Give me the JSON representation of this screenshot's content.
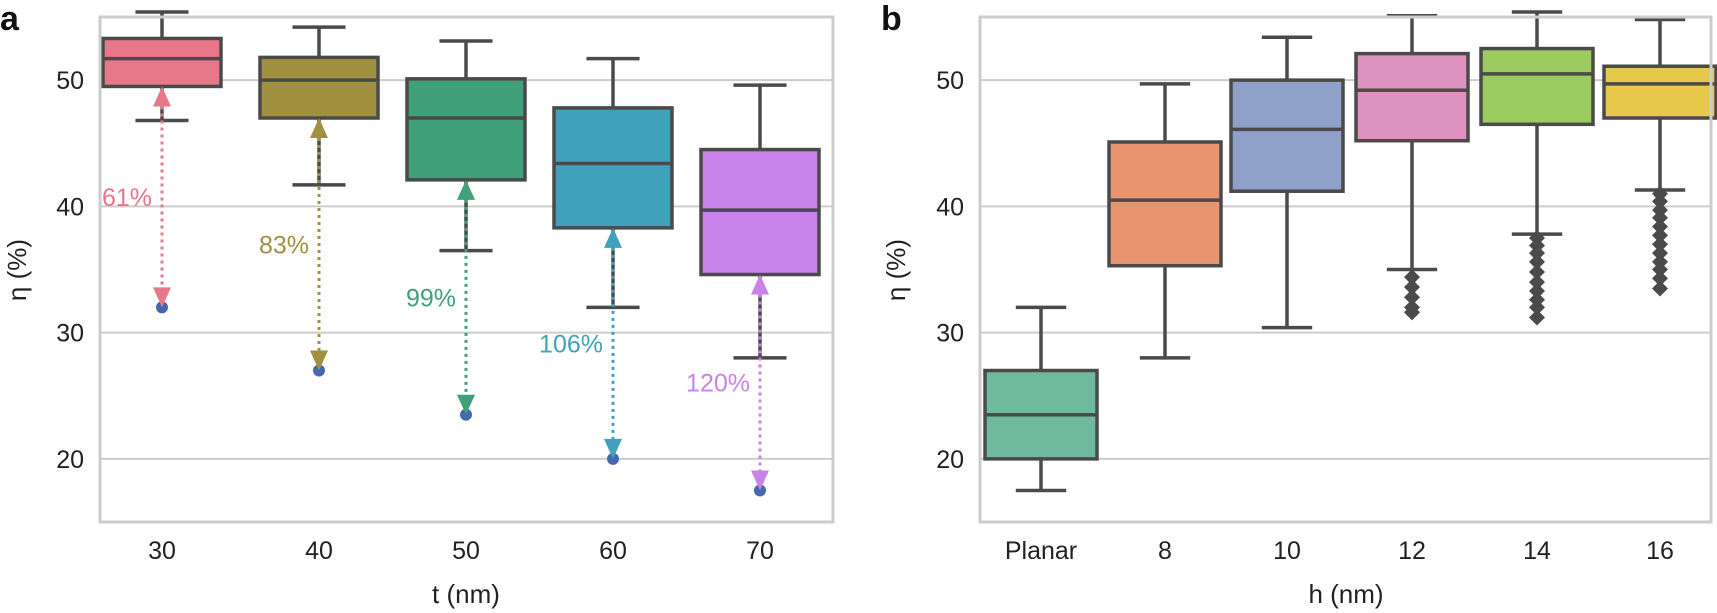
{
  "figure": {
    "panels": [
      {
        "id": "a",
        "label": "a"
      },
      {
        "id": "b",
        "label": "b"
      }
    ]
  },
  "chart_data": [
    {
      "panel": "a",
      "type": "box",
      "xlabel": "t (nm)",
      "ylabel": "η (%)",
      "ylim": [
        15,
        55
      ],
      "yticks": [
        20,
        30,
        40,
        50
      ],
      "grid": true,
      "categories": [
        "30",
        "40",
        "50",
        "60",
        "70"
      ],
      "colors": [
        "#e8778a",
        "#a09040",
        "#3fa07a",
        "#3fa2ba",
        "#c982e9"
      ],
      "boxes": [
        {
          "whislo": 46.8,
          "q1": 49.5,
          "med": 51.7,
          "q3": 53.3,
          "whishi": 55.4,
          "fliers": []
        },
        {
          "whislo": 41.7,
          "q1": 47.0,
          "med": 50.0,
          "q3": 51.8,
          "whishi": 54.2,
          "fliers": []
        },
        {
          "whislo": 36.5,
          "q1": 42.1,
          "med": 47.0,
          "q3": 50.1,
          "whishi": 53.1,
          "fliers": []
        },
        {
          "whislo": 32.0,
          "q1": 38.3,
          "med": 43.4,
          "q3": 47.8,
          "whishi": 51.7,
          "fliers": []
        },
        {
          "whislo": 28.0,
          "q1": 34.6,
          "med": 39.7,
          "q3": 44.5,
          "whishi": 49.6,
          "fliers": []
        }
      ],
      "reference_points": {
        "color": "#4468b0",
        "values": [
          32.0,
          27.0,
          23.5,
          20.0,
          17.5
        ]
      },
      "arrows": [
        {
          "from": 49.5,
          "to": 32.0,
          "label": "61%"
        },
        {
          "from": 47.0,
          "to": 27.0,
          "label": "83%"
        },
        {
          "from": 42.1,
          "to": 23.5,
          "label": "99%"
        },
        {
          "from": 38.3,
          "to": 20.0,
          "label": "106%"
        },
        {
          "from": 34.6,
          "to": 17.5,
          "label": "120%"
        }
      ]
    },
    {
      "panel": "b",
      "type": "box",
      "xlabel": "h (nm)",
      "ylabel": "η (%)",
      "ylim": [
        15,
        55
      ],
      "yticks": [
        20,
        30,
        40,
        50
      ],
      "grid": true,
      "categories": [
        "Planar",
        "8",
        "10",
        "12",
        "14",
        "16"
      ],
      "colors": [
        "#6fba9e",
        "#e8956f",
        "#8fa0c9",
        "#de92c0",
        "#9ccc60",
        "#e8c84a"
      ],
      "boxes": [
        {
          "whislo": 17.5,
          "q1": 20.0,
          "med": 23.5,
          "q3": 27.0,
          "whishi": 32.0,
          "fliers": []
        },
        {
          "whislo": 28.0,
          "q1": 35.3,
          "med": 40.5,
          "q3": 45.1,
          "whishi": 49.7,
          "fliers": []
        },
        {
          "whislo": 30.4,
          "q1": 41.2,
          "med": 46.1,
          "q3": 50.0,
          "whishi": 53.4,
          "fliers": []
        },
        {
          "whislo": 35.0,
          "q1": 45.2,
          "med": 49.2,
          "q3": 52.1,
          "whishi": 55.1,
          "fliers": [
            34.4,
            33.6,
            32.8,
            32.0,
            31.6
          ]
        },
        {
          "whislo": 37.8,
          "q1": 46.5,
          "med": 50.5,
          "q3": 52.5,
          "whishi": 55.4,
          "fliers": [
            37.5,
            36.9,
            36.3,
            35.6,
            34.8,
            34.0,
            33.3,
            32.6,
            32.0,
            31.2
          ]
        },
        {
          "whislo": 41.3,
          "q1": 47.0,
          "med": 49.7,
          "q3": 51.1,
          "whishi": 54.8,
          "fliers": [
            41.0,
            40.4,
            39.7,
            39.1,
            38.4,
            37.7,
            37.0,
            36.3,
            35.6,
            35.0,
            34.3,
            33.5
          ]
        }
      ]
    }
  ]
}
